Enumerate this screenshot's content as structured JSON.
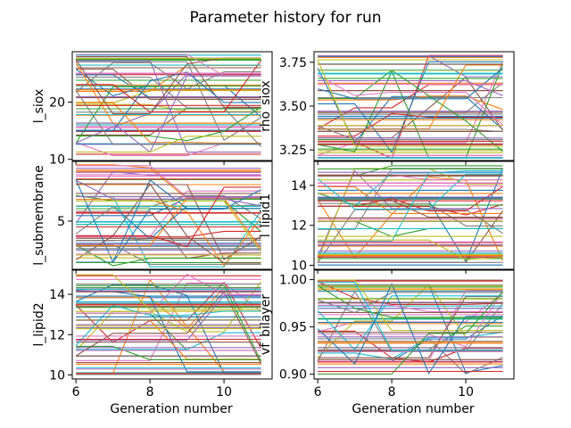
{
  "chart_data": {
    "title": "Parameter history for run",
    "type": "line",
    "shared_xlabel": "Generation number",
    "x_range": [
      5.9,
      11.3
    ],
    "x_ticks": [
      6,
      8,
      10
    ],
    "generations": [
      6,
      7,
      8,
      9,
      10,
      11
    ],
    "panels": [
      {
        "ylabel": "l_siox",
        "ylim": [
          9.8,
          28.8
        ],
        "yticks": [
          10,
          20
        ],
        "n_series": 60,
        "value_range": [
          10.5,
          28.5
        ]
      },
      {
        "ylabel": "rho_siox",
        "ylim": [
          3.19,
          3.81
        ],
        "yticks": [
          3.25,
          3.5,
          3.75
        ],
        "n_series": 60,
        "value_range": [
          3.2,
          3.8
        ]
      },
      {
        "ylabel": "l_submembrane",
        "ylim": [
          0.8,
          10.2
        ],
        "yticks": [
          5
        ],
        "n_series": 60,
        "value_range": [
          1,
          10
        ]
      },
      {
        "ylabel": "l_lipid1",
        "ylim": [
          9.8,
          15.2
        ],
        "yticks": [
          10,
          12,
          14
        ],
        "n_series": 60,
        "value_range": [
          10,
          15
        ]
      },
      {
        "ylabel": "l_lipid2",
        "ylim": [
          9.8,
          15.2
        ],
        "yticks": [
          10,
          12,
          14
        ],
        "n_series": 60,
        "value_range": [
          10,
          15
        ]
      },
      {
        "ylabel": "vf_bilayer",
        "ylim": [
          0.895,
          1.01
        ],
        "yticks": [
          0.9,
          0.95,
          1.0
        ],
        "n_series": 60,
        "value_range": [
          0.9,
          1.0
        ]
      }
    ],
    "series_colors": [
      "#1f77b4",
      "#ff7f0e",
      "#2ca02c",
      "#d62728",
      "#9467bd",
      "#8c564b",
      "#e377c2",
      "#7f7f7f",
      "#bcbd22",
      "#17becf"
    ]
  }
}
